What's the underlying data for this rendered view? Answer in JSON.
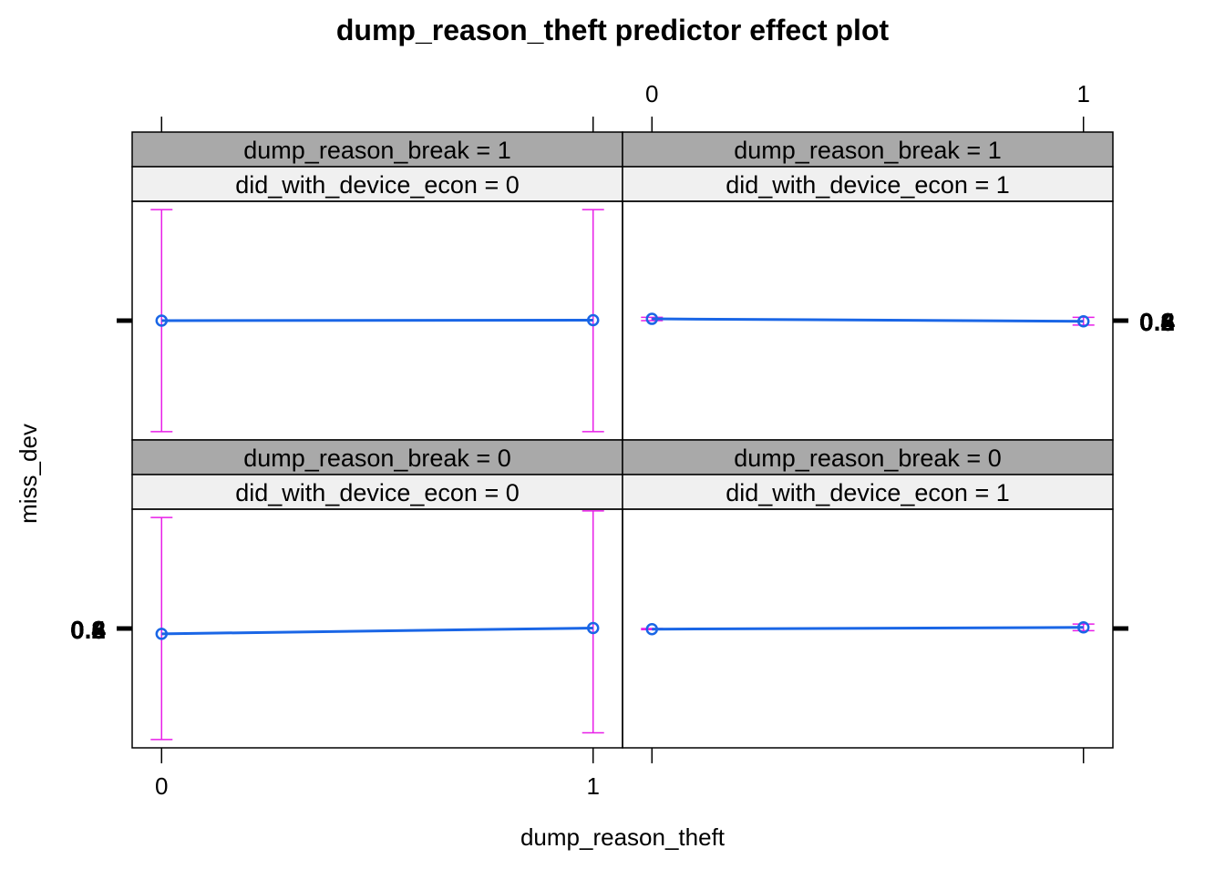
{
  "chart_data": {
    "type": "line",
    "title": "dump_reason_theft predictor effect plot",
    "xlabel": "dump_reason_theft",
    "ylabel": "miss_dev",
    "x_ticks": [
      "0",
      "1"
    ],
    "colors": {
      "line": "#1a66e6",
      "ci": "#e81ee8",
      "strip_outer": "#a9a9a9",
      "strip_inner": "#f0f0f0",
      "axis": "#000000"
    },
    "panels": [
      {
        "id": "top-left",
        "strip_outer": "dump_reason_break = 1",
        "strip_inner": "did_with_device_econ = 0",
        "x": [
          0,
          1
        ],
        "fit": [
          0.5,
          0.502
        ],
        "lower": [
          0.0,
          0.0
        ],
        "upper": [
          1.0,
          1.0
        ]
      },
      {
        "id": "top-right",
        "strip_outer": "dump_reason_break = 1",
        "strip_inner": "did_with_device_econ = 1",
        "x": [
          0,
          1
        ],
        "fit": [
          0.508,
          0.497
        ],
        "lower": [
          0.5,
          0.48
        ],
        "upper": [
          0.515,
          0.515
        ]
      },
      {
        "id": "bottom-left",
        "strip_outer": "dump_reason_break = 0",
        "strip_inner": "did_with_device_econ = 0",
        "x": [
          0,
          1
        ],
        "fit": [
          0.476,
          0.502
        ],
        "lower": [
          0.0,
          0.03
        ],
        "upper": [
          1.0,
          1.03
        ]
      },
      {
        "id": "bottom-right",
        "strip_outer": "dump_reason_break = 0",
        "strip_inner": "did_with_device_econ = 1",
        "x": [
          0,
          1
        ],
        "fit": [
          0.497,
          0.505
        ],
        "lower": [
          0.495,
          0.49
        ],
        "upper": [
          0.5,
          0.52
        ]
      }
    ],
    "y_tick_clusters": {
      "right": [
        "0.2",
        "0.4",
        "0.6",
        "0.8"
      ],
      "left": [
        "0.2",
        "0.4",
        "0.6",
        "0.8"
      ]
    },
    "ylim": [
      0,
      1
    ],
    "grid": false,
    "legend": "none"
  }
}
